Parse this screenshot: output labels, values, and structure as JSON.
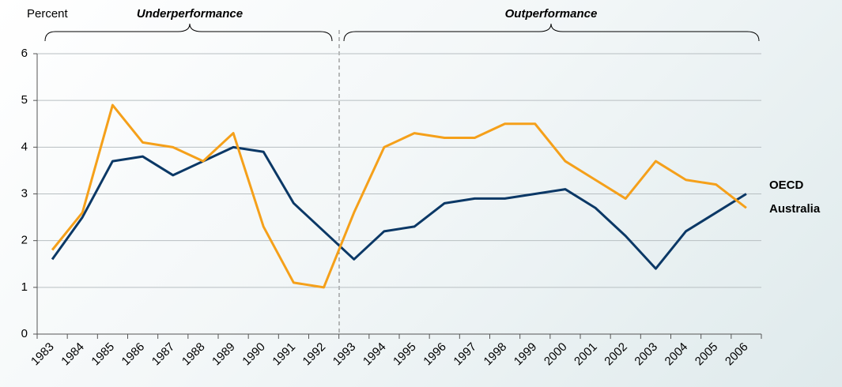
{
  "chart_data": {
    "type": "line",
    "y_label": "Percent",
    "annotations": [
      "Underperformance",
      "Outperformance"
    ],
    "categories": [
      "1983",
      "1984",
      "1985",
      "1986",
      "1987",
      "1988",
      "1989",
      "1990",
      "1991",
      "1992",
      "1993",
      "1994",
      "1995",
      "1996",
      "1997",
      "1998",
      "1999",
      "2000",
      "2001",
      "2002",
      "2003",
      "2004",
      "2005",
      "2006"
    ],
    "series": [
      {
        "name": "OECD",
        "color": "#0b3866",
        "values": [
          1.6,
          2.5,
          3.7,
          3.8,
          3.4,
          3.7,
          4.0,
          3.9,
          2.8,
          2.2,
          1.6,
          2.2,
          2.3,
          2.8,
          2.9,
          2.9,
          3.0,
          3.1,
          2.7,
          2.1,
          1.4,
          2.2,
          2.6,
          3.0
        ]
      },
      {
        "name": "Australia",
        "color": "#f5a01a",
        "values": [
          1.8,
          2.6,
          4.9,
          4.1,
          4.0,
          3.7,
          4.3,
          2.3,
          1.1,
          1.0,
          2.6,
          4.0,
          4.3,
          4.2,
          4.2,
          4.5,
          4.5,
          3.7,
          3.3,
          2.9,
          3.7,
          3.3,
          3.2,
          2.7
        ]
      }
    ],
    "ylim": [
      0,
      6
    ],
    "yticks": [
      0,
      1,
      2,
      3,
      4,
      5,
      6
    ],
    "grid": true
  }
}
